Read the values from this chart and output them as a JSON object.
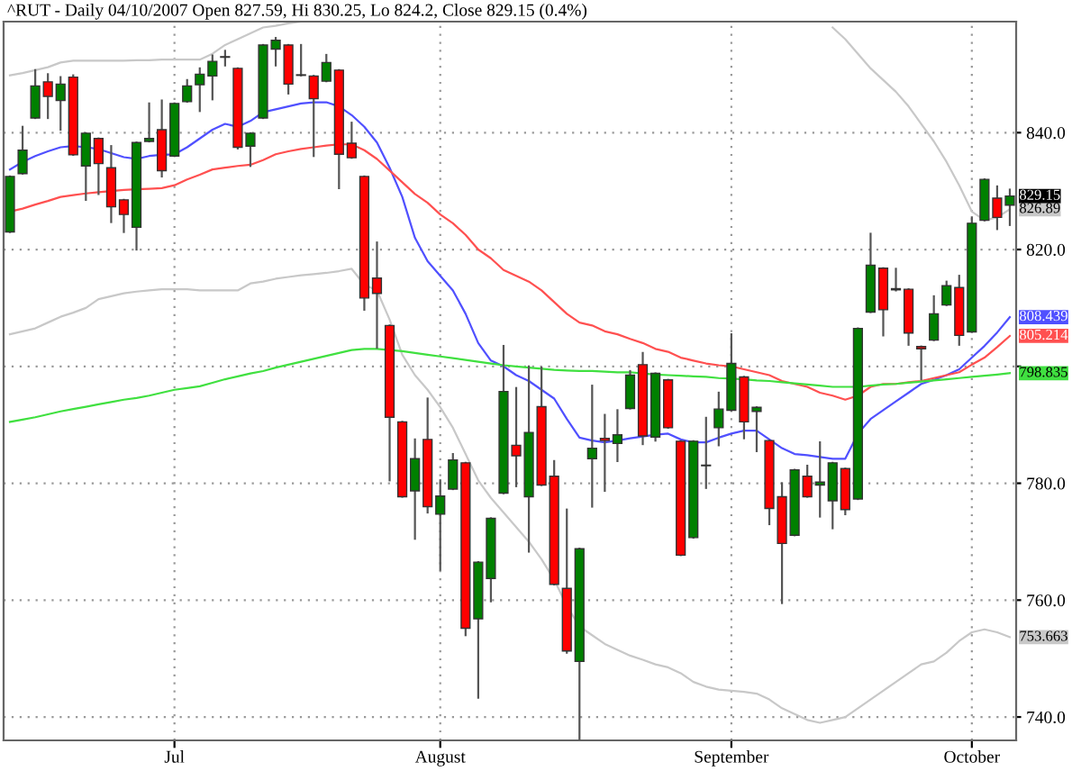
{
  "chart_data": {
    "type": "candlestick",
    "title": "^RUT - Daily 04/10/2007 Open 827.59, Hi 830.25, Lo 824.2, Close 829.15 (0.4%)",
    "categories": [
      null,
      null,
      null,
      null,
      null,
      null,
      null,
      null,
      null,
      null,
      null,
      null,
      null,
      "Jul",
      null,
      null,
      null,
      null,
      null,
      null,
      null,
      null,
      null,
      null,
      null,
      null,
      null,
      null,
      null,
      null,
      null,
      null,
      null,
      null,
      "August",
      null,
      null,
      null,
      null,
      null,
      null,
      null,
      null,
      null,
      null,
      null,
      null,
      null,
      null,
      null,
      null,
      null,
      null,
      null,
      null,
      null,
      null,
      "September",
      null,
      null,
      null,
      null,
      null,
      null,
      null,
      null,
      null,
      null,
      null,
      null,
      null,
      null,
      null,
      null,
      null,
      null,
      "October",
      null,
      null,
      null
    ],
    "ohlc": [
      [
        823.0,
        832.5,
        823.0,
        832.5
      ],
      [
        833.0,
        841.0,
        833.0,
        837.0
      ],
      [
        842.5,
        850.7,
        842.5,
        848.0
      ],
      [
        848.7,
        850.0,
        842.5,
        846.2
      ],
      [
        845.5,
        849.5,
        840.5,
        848.3
      ],
      [
        849.5,
        849.8,
        836.2,
        836.2
      ],
      [
        834.3,
        839.9,
        828.5,
        839.9
      ],
      [
        839.0,
        839.0,
        829.5,
        834.7
      ],
      [
        834.0,
        837.7,
        824.7,
        827.3
      ],
      [
        828.5,
        828.5,
        823.0,
        826.0
      ],
      [
        823.8,
        838.3,
        820.0,
        838.3
      ],
      [
        838.5,
        845.0,
        838.5,
        839.0
      ],
      [
        840.5,
        845.5,
        832.5,
        833.5
      ],
      [
        836.0,
        845.0,
        836.0,
        845.0
      ],
      [
        845.3,
        849.0,
        845.3,
        848.0
      ],
      [
        848.2,
        851.0,
        843.7,
        850.0
      ],
      [
        849.7,
        853.2,
        845.7,
        852.2
      ],
      [
        853.0,
        854.0,
        851.5,
        852.9
      ],
      [
        851.0,
        851.0,
        837.3,
        837.5
      ],
      [
        837.7,
        839.9,
        834.3,
        839.9
      ],
      [
        842.5,
        855.0,
        842.5,
        855.0
      ],
      [
        854.3,
        856.2,
        851.5,
        855.8
      ],
      [
        855.0,
        855.0,
        846.7,
        848.3
      ],
      [
        849.9,
        855.0,
        849.8,
        849.8
      ],
      [
        849.7,
        849.7,
        836.0,
        845.8
      ],
      [
        848.8,
        853.3,
        848.8,
        852.0
      ],
      [
        850.7,
        850.7,
        830.5,
        836.3
      ],
      [
        838.2,
        841.7,
        835.7,
        835.7
      ],
      [
        832.5,
        832.5,
        809.7,
        811.7
      ],
      [
        815.1,
        821.2,
        803.2,
        812.5
      ],
      [
        807.0,
        807.0,
        780.5,
        791.3
      ],
      [
        790.5,
        790.5,
        777.7,
        777.7
      ],
      [
        778.7,
        787.5,
        770.5,
        784.2
      ],
      [
        787.5,
        794.5,
        775.0,
        776.0
      ],
      [
        774.7,
        780.5,
        765.2,
        777.8
      ],
      [
        779.0,
        785.0,
        779.0,
        784.0
      ],
      [
        783.5,
        783.5,
        754.0,
        755.2
      ],
      [
        756.8,
        766.5,
        743.3,
        766.5
      ],
      [
        763.7,
        774.0,
        759.8,
        774.0
      ],
      [
        778.3,
        803.5,
        778.3,
        795.7
      ],
      [
        786.5,
        796.3,
        779.5,
        784.7
      ],
      [
        777.7,
        800.0,
        768.3,
        788.7
      ],
      [
        793.1,
        799.8,
        779.7,
        779.7
      ],
      [
        781.2,
        783.8,
        762.7,
        762.7
      ],
      [
        762.0,
        775.5,
        751.0,
        751.3
      ],
      [
        749.5,
        768.8,
        736.0,
        768.8
      ],
      [
        784.2,
        796.7,
        776.0,
        786.0
      ],
      [
        787.7,
        791.7,
        778.7,
        787.3
      ],
      [
        786.8,
        792.5,
        783.8,
        788.3
      ],
      [
        792.8,
        799.2,
        792.8,
        798.5
      ],
      [
        800.3,
        802.3,
        786.7,
        788.1
      ],
      [
        787.9,
        798.8,
        787.3,
        798.8
      ],
      [
        797.7,
        797.7,
        789.5,
        789.5
      ],
      [
        787.2,
        787.2,
        767.7,
        767.7
      ],
      [
        770.7,
        787.2,
        770.7,
        787.2
      ],
      [
        783.0,
        791.2,
        779.2,
        783.1
      ],
      [
        789.5,
        795.5,
        786.5,
        792.7
      ],
      [
        792.5,
        805.5,
        792.5,
        800.5
      ],
      [
        798.2,
        798.2,
        787.7,
        790.5
      ],
      [
        792.3,
        793.0,
        785.5,
        793.0
      ],
      [
        787.3,
        787.3,
        773.0,
        775.7
      ],
      [
        777.7,
        780.0,
        759.5,
        769.7
      ],
      [
        771.1,
        782.3,
        771.1,
        782.3
      ],
      [
        781.2,
        783.0,
        777.7,
        777.7
      ],
      [
        779.7,
        787.0,
        774.3,
        780.2
      ],
      [
        777.0,
        783.5,
        772.3,
        783.5
      ],
      [
        782.5,
        782.5,
        774.7,
        775.5
      ],
      [
        777.3,
        806.5,
        777.3,
        806.5
      ],
      [
        809.3,
        822.7,
        809.3,
        817.3
      ],
      [
        816.8,
        816.8,
        805.3,
        809.7
      ],
      [
        813.3,
        816.7,
        813.0,
        813.1
      ],
      [
        813.2,
        813.2,
        803.7,
        805.7
      ],
      [
        803.4,
        803.4,
        797.8,
        803.0
      ],
      [
        804.5,
        812.0,
        804.5,
        809.0
      ],
      [
        810.5,
        814.5,
        810.5,
        813.8
      ],
      [
        813.5,
        815.5,
        803.7,
        805.3
      ],
      [
        805.9,
        825.5,
        805.9,
        824.5
      ],
      [
        825.0,
        832.0,
        825.0,
        832.0
      ],
      [
        828.8,
        830.8,
        823.5,
        825.5
      ],
      [
        827.59,
        830.25,
        824.2,
        829.15
      ]
    ],
    "series": [
      {
        "type": "line",
        "color": "#c8c8c8",
        "values": [
          849.8,
          850.2,
          850.7,
          851.2,
          852.0,
          852.3,
          852.3,
          852.3,
          852.3,
          852.3,
          852.4,
          852.4,
          852.5,
          852.5,
          852.5,
          852.5,
          853.5,
          855.0,
          856.0,
          857.0,
          858.0,
          858.3,
          858.7,
          859.0,
          null,
          null,
          null,
          null,
          null,
          null,
          null,
          null,
          null,
          null,
          null,
          null,
          null,
          null,
          null,
          null,
          null,
          null,
          null,
          null,
          null,
          null,
          null,
          null,
          null,
          null,
          null,
          null,
          null,
          null,
          null,
          null,
          null,
          null,
          null,
          null,
          null,
          null,
          null,
          null,
          null,
          858.0,
          856.0,
          853.5,
          851.0,
          849.0,
          847.0,
          844.5,
          841.5,
          838.5,
          835.0,
          831.0,
          826.5,
          825.0,
          825.5,
          826.89
        ],
        "value_labels": [
          null,
          null,
          null,
          null,
          null,
          null,
          null,
          null,
          null,
          null,
          null,
          null,
          null,
          null,
          null,
          null,
          null,
          null,
          null,
          null,
          null,
          null,
          null,
          null,
          null,
          null,
          null,
          null,
          null,
          null,
          null,
          null,
          null,
          null,
          null,
          null,
          null,
          null,
          null,
          null,
          null,
          null,
          null,
          null,
          null,
          null,
          null,
          null,
          null,
          null,
          null,
          null,
          null,
          null,
          null,
          null,
          null,
          null,
          null,
          null,
          null,
          null,
          null,
          null,
          null,
          null,
          null,
          null,
          null,
          null,
          null,
          null,
          null,
          null,
          null,
          null,
          null,
          null,
          null,
          "826.89"
        ]
      },
      {
        "type": "line",
        "color": "#c8c8c8",
        "values": [
          805.5,
          806.0,
          806.5,
          807.5,
          808.5,
          809.2,
          810.0,
          811.5,
          812.0,
          812.5,
          812.8,
          813.0,
          813.2,
          813.2,
          813.2,
          813.0,
          813.0,
          813.0,
          813.0,
          814.2,
          814.5,
          815.0,
          815.3,
          815.6,
          815.8,
          816.0,
          816.3,
          816.7,
          814.0,
          813.0,
          808.0,
          802.0,
          798.5,
          796.0,
          793.0,
          789.5,
          785.0,
          780.5,
          777.5,
          775.0,
          772.5,
          770.0,
          767.0,
          763.5,
          759.0,
          755.5,
          754.0,
          752.5,
          751.5,
          750.5,
          749.8,
          749.0,
          748.5,
          747.5,
          746.0,
          745.2,
          744.7,
          744.5,
          744.3,
          744.0,
          743.0,
          741.5,
          740.5,
          739.5,
          739.0,
          739.5,
          740.0,
          741.5,
          743.0,
          744.5,
          746.0,
          747.5,
          749.0,
          749.5,
          751.0,
          753.0,
          754.5,
          755.0,
          754.5,
          753.663
        ],
        "value_labels": [
          null,
          null,
          null,
          null,
          null,
          null,
          null,
          null,
          null,
          null,
          null,
          null,
          null,
          null,
          null,
          null,
          null,
          null,
          null,
          null,
          null,
          null,
          null,
          null,
          null,
          null,
          null,
          null,
          null,
          null,
          null,
          null,
          null,
          null,
          null,
          null,
          null,
          null,
          null,
          null,
          null,
          null,
          null,
          null,
          null,
          null,
          null,
          null,
          null,
          null,
          null,
          null,
          null,
          null,
          null,
          null,
          null,
          null,
          null,
          null,
          null,
          null,
          null,
          null,
          null,
          null,
          null,
          null,
          null,
          null,
          null,
          null,
          null,
          null,
          null,
          null,
          null,
          null,
          null,
          "753.663"
        ]
      },
      {
        "type": "line",
        "color": "#5050ff",
        "values": [
          833.7,
          835.0,
          836.0,
          836.8,
          837.5,
          837.7,
          837.5,
          837.2,
          836.5,
          835.8,
          835.5,
          836.0,
          836.2,
          836.3,
          837.5,
          839.0,
          840.5,
          841.5,
          841.0,
          842.0,
          843.5,
          844.0,
          844.5,
          845.0,
          845.2,
          845.2,
          844.5,
          843.0,
          841.0,
          838.3,
          834.0,
          829.0,
          822.0,
          818.0,
          815.5,
          813.0,
          809.0,
          804.0,
          801.0,
          800.0,
          798.5,
          797.5,
          796.0,
          794.5,
          791.0,
          787.8,
          787.3,
          787.0,
          787.3,
          787.7,
          788.0,
          788.3,
          788.5,
          787.5,
          787.0,
          787.0,
          787.8,
          788.5,
          789.0,
          789.0,
          787.5,
          786.0,
          785.0,
          784.8,
          784.5,
          784.2,
          784.2,
          788.5,
          791.0,
          792.5,
          794.0,
          795.5,
          797.0,
          797.7,
          798.5,
          799.5,
          801.5,
          803.5,
          805.8,
          808.439
        ],
        "value_labels": [
          null,
          null,
          null,
          null,
          null,
          null,
          null,
          null,
          null,
          null,
          null,
          null,
          null,
          null,
          null,
          null,
          null,
          null,
          null,
          null,
          null,
          null,
          null,
          null,
          null,
          null,
          null,
          null,
          null,
          null,
          null,
          null,
          null,
          null,
          null,
          null,
          null,
          null,
          null,
          null,
          null,
          null,
          null,
          null,
          null,
          null,
          null,
          null,
          null,
          null,
          null,
          null,
          null,
          null,
          null,
          null,
          null,
          null,
          null,
          null,
          null,
          null,
          null,
          null,
          null,
          null,
          null,
          null,
          null,
          null,
          null,
          null,
          null,
          null,
          null,
          null,
          null,
          null,
          null,
          "808.439"
        ]
      },
      {
        "type": "line",
        "color": "#ff5050",
        "values": [
          826.5,
          827.0,
          827.7,
          828.3,
          829.0,
          829.3,
          829.6,
          829.8,
          830.0,
          830.2,
          830.3,
          830.4,
          830.5,
          831.0,
          832.0,
          832.8,
          833.7,
          834.0,
          834.3,
          834.5,
          835.3,
          836.3,
          836.8,
          837.2,
          837.5,
          837.8,
          838.0,
          838.0,
          837.0,
          835.5,
          833.5,
          831.5,
          829.5,
          828.0,
          826.0,
          824.5,
          822.5,
          820.0,
          818.5,
          816.5,
          815.5,
          814.5,
          813.0,
          811.0,
          809.0,
          807.5,
          807.0,
          806.0,
          805.5,
          804.7,
          804.0,
          803.0,
          802.5,
          801.5,
          801.0,
          800.5,
          800.2,
          800.0,
          799.5,
          799.0,
          798.5,
          797.5,
          797.0,
          796.5,
          795.5,
          795.0,
          794.3,
          795.0,
          796.5,
          797.0,
          797.0,
          797.3,
          797.5,
          798.0,
          798.5,
          799.0,
          800.3,
          801.5,
          803.3,
          805.214
        ],
        "value_labels": [
          null,
          null,
          null,
          null,
          null,
          null,
          null,
          null,
          null,
          null,
          null,
          null,
          null,
          null,
          null,
          null,
          null,
          null,
          null,
          null,
          null,
          null,
          null,
          null,
          null,
          null,
          null,
          null,
          null,
          null,
          null,
          null,
          null,
          null,
          null,
          null,
          null,
          null,
          null,
          null,
          null,
          null,
          null,
          null,
          null,
          null,
          null,
          null,
          null,
          null,
          null,
          null,
          null,
          null,
          null,
          null,
          null,
          null,
          null,
          null,
          null,
          null,
          null,
          null,
          null,
          null,
          null,
          null,
          null,
          null,
          null,
          null,
          null,
          null,
          null,
          null,
          null,
          null,
          null,
          "805.214"
        ]
      },
      {
        "type": "line",
        "color": "#40e040",
        "values": [
          790.5,
          790.9,
          791.3,
          791.8,
          792.3,
          792.7,
          793.1,
          793.5,
          793.9,
          794.3,
          794.6,
          795.0,
          795.5,
          796.0,
          796.3,
          796.6,
          797.2,
          797.8,
          798.3,
          798.8,
          799.2,
          799.8,
          800.3,
          800.8,
          801.3,
          801.8,
          802.3,
          802.8,
          803.0,
          803.0,
          802.8,
          802.6,
          802.3,
          802.0,
          801.7,
          801.4,
          801.1,
          800.8,
          800.5,
          800.2,
          800.0,
          799.8,
          799.6,
          799.4,
          799.3,
          799.2,
          799.2,
          799.1,
          799.0,
          799.0,
          798.8,
          798.6,
          798.5,
          798.4,
          798.3,
          798.2,
          798.0,
          797.9,
          797.8,
          797.6,
          797.5,
          797.3,
          797.1,
          796.9,
          796.7,
          796.5,
          796.5,
          796.5,
          796.7,
          796.9,
          797.0,
          797.2,
          797.4,
          797.6,
          797.8,
          798.0,
          798.2,
          798.4,
          798.6,
          798.835
        ],
        "value_labels": [
          null,
          null,
          null,
          null,
          null,
          null,
          null,
          null,
          null,
          null,
          null,
          null,
          null,
          null,
          null,
          null,
          null,
          null,
          null,
          null,
          null,
          null,
          null,
          null,
          null,
          null,
          null,
          null,
          null,
          null,
          null,
          null,
          null,
          null,
          null,
          null,
          null,
          null,
          null,
          null,
          null,
          null,
          null,
          null,
          null,
          null,
          null,
          null,
          null,
          null,
          null,
          null,
          null,
          null,
          null,
          null,
          null,
          null,
          null,
          null,
          null,
          null,
          null,
          null,
          null,
          null,
          null,
          null,
          null,
          null,
          null,
          null,
          null,
          null,
          null,
          null,
          null,
          null,
          null,
          "798.835"
        ]
      }
    ],
    "annotations": [
      {
        "text": "829.15",
        "y": 829.15
      }
    ],
    "ylim": [
      736,
      859
    ],
    "yticks": [
      {
        "value": 740,
        "label": "740.0"
      },
      {
        "value": 760,
        "label": "760.0"
      },
      {
        "value": 780,
        "label": "780.0"
      },
      {
        "value": 800,
        "label": null
      },
      {
        "value": 820,
        "label": "820.0"
      },
      {
        "value": 840,
        "label": "840.0"
      }
    ],
    "grid": true
  }
}
